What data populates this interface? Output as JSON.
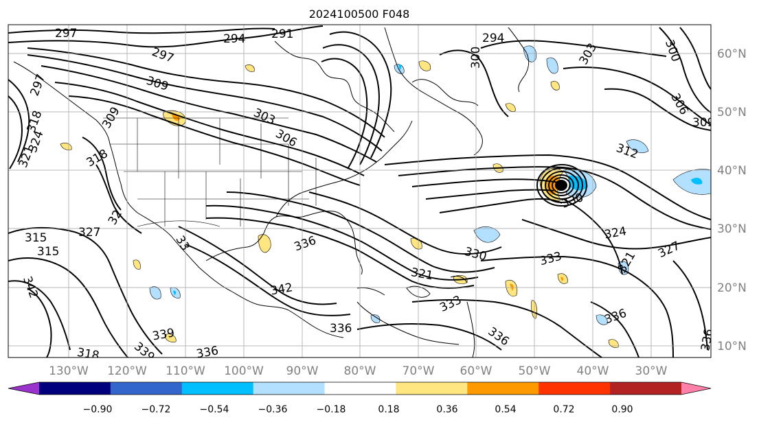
{
  "title": "2024100500 F048",
  "lon_ticks": [
    "130°W",
    "120°W",
    "110°W",
    "100°W",
    "90°W",
    "80°W",
    "70°W",
    "60°W",
    "50°W",
    "40°W",
    "30°W"
  ],
  "lat_ticks": [
    "60°N",
    "50°N",
    "40°N",
    "30°N",
    "20°N",
    "10°N"
  ],
  "contour_labels": [
    "297",
    "294",
    "291",
    "297",
    "294",
    "300",
    "303",
    "300",
    "306",
    "309",
    "297",
    "309",
    "303",
    "306",
    "312",
    "309",
    "318",
    "321",
    "324",
    "318",
    "315",
    "315",
    "327",
    "32",
    "33",
    "336",
    "339",
    "342",
    "330",
    "333",
    "321",
    "324",
    "327",
    "321",
    "336",
    "333",
    "336",
    "339",
    "336",
    "336",
    "330",
    "318",
    "342",
    "336"
  ],
  "colorbar": {
    "ticks": [
      "−0.90",
      "−0.72",
      "−0.54",
      "−0.36",
      "−0.18",
      "0.18",
      "0.36",
      "0.54",
      "0.72",
      "0.90"
    ],
    "colors": [
      "#9933cc",
      "#00007f",
      "#3366cc",
      "#00bfff",
      "#b3e0ff",
      "#ffffff",
      "#ffe680",
      "#ff9900",
      "#ff3300",
      "#b22222",
      "#ff80a8"
    ]
  },
  "colors": {
    "tick_label": "#808080",
    "contour": "#000000",
    "grid": "#a0a0a0"
  }
}
